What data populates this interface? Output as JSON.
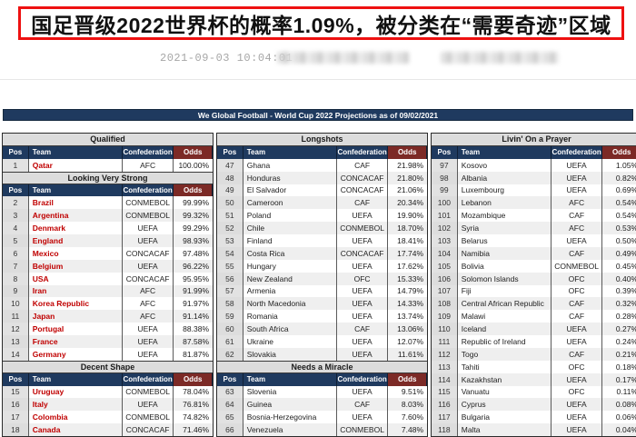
{
  "article": {
    "title": "国足晋级2022世界杯的概率1.09%，被分类在“需要奇迹”区域",
    "timestamp": "2021-09-03 10:04:01"
  },
  "table": {
    "banner": "We Global Football - World Cup 2022 Projections as of 09/02/2021",
    "headers": {
      "pos": "Pos",
      "team": "Team",
      "confederation": "Confederation",
      "odds": "Odds"
    },
    "colors": {
      "header_navy": "#1f3a5f",
      "odds_maroon": "#7c2a26",
      "section_gray": "#dcdcdc",
      "team_red": "#c00000",
      "title_border_red": "#ee1111"
    },
    "columns": [
      {
        "sections": [
          {
            "title": "Qualified",
            "red_teams": true,
            "rows": [
              [
                "1",
                "Qatar",
                "AFC",
                "100.00%"
              ]
            ]
          },
          {
            "title": "Looking Very Strong",
            "red_teams": true,
            "rows": [
              [
                "2",
                "Brazil",
                "CONMEBOL",
                "99.99%"
              ],
              [
                "3",
                "Argentina",
                "CONMEBOL",
                "99.32%"
              ],
              [
                "4",
                "Denmark",
                "UEFA",
                "99.29%"
              ],
              [
                "5",
                "England",
                "UEFA",
                "98.93%"
              ],
              [
                "6",
                "Mexico",
                "CONCACAF",
                "97.48%"
              ],
              [
                "7",
                "Belgium",
                "UEFA",
                "96.22%"
              ],
              [
                "8",
                "USA",
                "CONCACAF",
                "95.95%"
              ],
              [
                "9",
                "Iran",
                "AFC",
                "91.99%"
              ],
              [
                "10",
                "Korea Republic",
                "AFC",
                "91.97%"
              ],
              [
                "11",
                "Japan",
                "AFC",
                "91.14%"
              ],
              [
                "12",
                "Portugal",
                "UEFA",
                "88.38%"
              ],
              [
                "13",
                "France",
                "UEFA",
                "87.58%"
              ],
              [
                "14",
                "Germany",
                "UEFA",
                "81.87%"
              ]
            ]
          },
          {
            "title": "Decent Shape",
            "red_teams": true,
            "rows": [
              [
                "15",
                "Uruguay",
                "CONMEBOL",
                "78.04%"
              ],
              [
                "16",
                "Italy",
                "UEFA",
                "76.81%"
              ],
              [
                "17",
                "Colombia",
                "CONMEBOL",
                "74.82%"
              ],
              [
                "18",
                "Canada",
                "CONCACAF",
                "71.46%"
              ]
            ]
          }
        ]
      },
      {
        "sections": [
          {
            "title": "Longshots",
            "red_teams": false,
            "rows": [
              [
                "47",
                "Ghana",
                "CAF",
                "21.98%"
              ],
              [
                "48",
                "Honduras",
                "CONCACAF",
                "21.80%"
              ],
              [
                "49",
                "El Salvador",
                "CONCACAF",
                "21.06%"
              ],
              [
                "50",
                "Cameroon",
                "CAF",
                "20.34%"
              ],
              [
                "51",
                "Poland",
                "UEFA",
                "19.90%"
              ],
              [
                "52",
                "Chile",
                "CONMEBOL",
                "18.70%"
              ],
              [
                "53",
                "Finland",
                "UEFA",
                "18.41%"
              ],
              [
                "54",
                "Costa Rica",
                "CONCACAF",
                "17.74%"
              ],
              [
                "55",
                "Hungary",
                "UEFA",
                "17.62%"
              ],
              [
                "56",
                "New Zealand",
                "OFC",
                "15.33%"
              ],
              [
                "57",
                "Armenia",
                "UEFA",
                "14.79%"
              ],
              [
                "58",
                "North Macedonia",
                "UEFA",
                "14.33%"
              ],
              [
                "59",
                "Romania",
                "UEFA",
                "13.74%"
              ],
              [
                "60",
                "South Africa",
                "CAF",
                "13.06%"
              ],
              [
                "61",
                "Ukraine",
                "UEFA",
                "12.07%"
              ],
              [
                "62",
                "Slovakia",
                "UEFA",
                "11.61%"
              ]
            ]
          },
          {
            "title": "Needs a Miracle",
            "red_teams": false,
            "rows": [
              [
                "63",
                "Slovenia",
                "UEFA",
                "9.51%"
              ],
              [
                "64",
                "Guinea",
                "CAF",
                "8.03%"
              ],
              [
                "65",
                "Bosnia-Herzegovina",
                "UEFA",
                "7.60%"
              ],
              [
                "66",
                "Venezuela",
                "CONMEBOL",
                "7.48%"
              ]
            ]
          }
        ]
      },
      {
        "sections": [
          {
            "title": "Livin' On a Prayer",
            "red_teams": false,
            "rows": [
              [
                "97",
                "Kosovo",
                "UEFA",
                "1.05%"
              ],
              [
                "98",
                "Albania",
                "UEFA",
                "0.82%"
              ],
              [
                "99",
                "Luxembourg",
                "UEFA",
                "0.69%"
              ],
              [
                "100",
                "Lebanon",
                "AFC",
                "0.54%"
              ],
              [
                "101",
                "Mozambique",
                "CAF",
                "0.54%"
              ],
              [
                "102",
                "Syria",
                "AFC",
                "0.53%"
              ],
              [
                "103",
                "Belarus",
                "UEFA",
                "0.50%"
              ],
              [
                "104",
                "Namibia",
                "CAF",
                "0.49%"
              ],
              [
                "105",
                "Bolivia",
                "CONMEBOL",
                "0.45%"
              ],
              [
                "106",
                "Solomon Islands",
                "OFC",
                "0.40%"
              ],
              [
                "107",
                "Fiji",
                "OFC",
                "0.39%"
              ],
              [
                "108",
                "Central African Republic",
                "CAF",
                "0.32%"
              ],
              [
                "109",
                "Malawi",
                "CAF",
                "0.28%"
              ],
              [
                "110",
                "Iceland",
                "UEFA",
                "0.27%"
              ],
              [
                "111",
                "Republic of Ireland",
                "UEFA",
                "0.24%"
              ],
              [
                "112",
                "Togo",
                "CAF",
                "0.21%"
              ],
              [
                "113",
                "Tahiti",
                "OFC",
                "0.18%"
              ],
              [
                "114",
                "Kazakhstan",
                "UEFA",
                "0.17%"
              ],
              [
                "115",
                "Vanuatu",
                "OFC",
                "0.11%"
              ],
              [
                "116",
                "Cyprus",
                "UEFA",
                "0.08%"
              ],
              [
                "117",
                "Bulgaria",
                "UEFA",
                "0.06%"
              ],
              [
                "118",
                "Malta",
                "UEFA",
                "0.04%"
              ]
            ]
          }
        ]
      }
    ]
  }
}
